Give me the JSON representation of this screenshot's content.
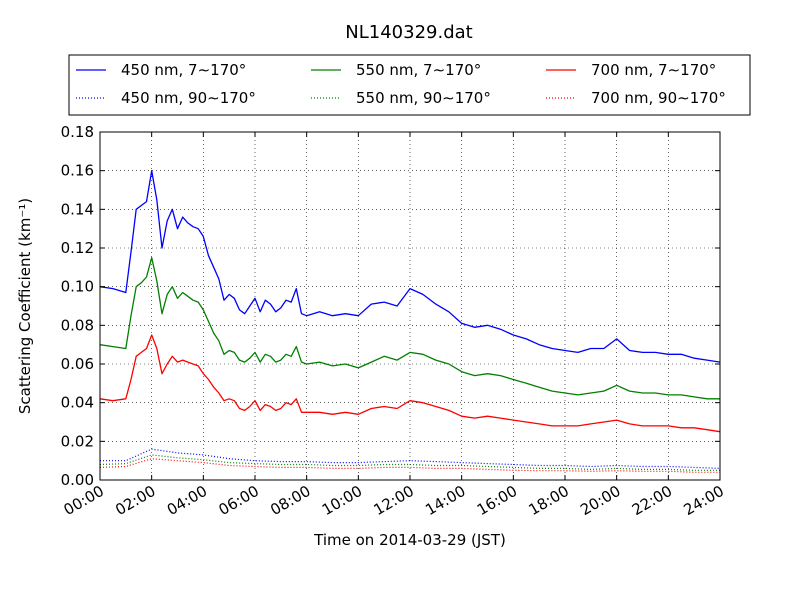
{
  "chart_data": {
    "type": "line",
    "title": "NL140329.dat",
    "xlabel": "Time on 2014-03-29 (JST)",
    "ylabel": "Scattering Coefficient (km⁻¹)",
    "x_unit": "hour",
    "xlim": [
      0,
      24
    ],
    "ylim": [
      0,
      0.18
    ],
    "grid": true,
    "legend_position": "top",
    "x_ticks": [
      {
        "value": 0,
        "label": "00:00"
      },
      {
        "value": 2,
        "label": "02:00"
      },
      {
        "value": 4,
        "label": "04:00"
      },
      {
        "value": 6,
        "label": "06:00"
      },
      {
        "value": 8,
        "label": "08:00"
      },
      {
        "value": 10,
        "label": "10:00"
      },
      {
        "value": 12,
        "label": "12:00"
      },
      {
        "value": 14,
        "label": "14:00"
      },
      {
        "value": 16,
        "label": "16:00"
      },
      {
        "value": 18,
        "label": "18:00"
      },
      {
        "value": 20,
        "label": "20:00"
      },
      {
        "value": 22,
        "label": "22:00"
      },
      {
        "value": 24,
        "label": "24:00"
      }
    ],
    "y_ticks": [
      {
        "value": 0.0,
        "label": "0.00"
      },
      {
        "value": 0.02,
        "label": "0.02"
      },
      {
        "value": 0.04,
        "label": "0.04"
      },
      {
        "value": 0.06,
        "label": "0.06"
      },
      {
        "value": 0.08,
        "label": "0.08"
      },
      {
        "value": 0.1,
        "label": "0.10"
      },
      {
        "value": 0.12,
        "label": "0.12"
      },
      {
        "value": 0.14,
        "label": "0.14"
      },
      {
        "value": 0.16,
        "label": "0.16"
      },
      {
        "value": 0.18,
        "label": "0.18"
      }
    ],
    "series": [
      {
        "name": "450 nm, 7∼170°",
        "color": "#0000ff",
        "style": "solid",
        "x": [
          0,
          0.5,
          1,
          1.2,
          1.4,
          1.6,
          1.8,
          2,
          2.2,
          2.4,
          2.6,
          2.8,
          3,
          3.2,
          3.4,
          3.6,
          3.8,
          4,
          4.2,
          4.4,
          4.6,
          4.8,
          5,
          5.2,
          5.4,
          5.6,
          5.8,
          6,
          6.2,
          6.4,
          6.6,
          6.8,
          7,
          7.2,
          7.4,
          7.6,
          7.8,
          8,
          8.5,
          9,
          9.5,
          10,
          10.5,
          11,
          11.5,
          12,
          12.5,
          13,
          13.5,
          14,
          14.5,
          15,
          15.5,
          16,
          16.5,
          17,
          17.5,
          18,
          18.5,
          19,
          19.5,
          20,
          20.5,
          21,
          21.5,
          22,
          22.5,
          23,
          23.5,
          24
        ],
        "y": [
          0.1,
          0.099,
          0.097,
          0.118,
          0.14,
          0.142,
          0.144,
          0.16,
          0.145,
          0.12,
          0.134,
          0.14,
          0.13,
          0.136,
          0.133,
          0.131,
          0.13,
          0.126,
          0.116,
          0.11,
          0.104,
          0.093,
          0.096,
          0.094,
          0.088,
          0.086,
          0.09,
          0.094,
          0.087,
          0.093,
          0.091,
          0.087,
          0.089,
          0.093,
          0.092,
          0.099,
          0.086,
          0.085,
          0.087,
          0.085,
          0.086,
          0.085,
          0.091,
          0.092,
          0.09,
          0.099,
          0.096,
          0.091,
          0.087,
          0.081,
          0.079,
          0.08,
          0.078,
          0.075,
          0.073,
          0.07,
          0.068,
          0.067,
          0.066,
          0.068,
          0.068,
          0.073,
          0.067,
          0.066,
          0.066,
          0.065,
          0.065,
          0.063,
          0.062,
          0.061
        ]
      },
      {
        "name": "450 nm, 90∼170°",
        "color": "#0000ff",
        "style": "dotted",
        "x": [
          0,
          1,
          2,
          3,
          4,
          5,
          6,
          7,
          8,
          9,
          10,
          11,
          12,
          13,
          14,
          15,
          16,
          17,
          18,
          19,
          20,
          21,
          22,
          23,
          24
        ],
        "y": [
          0.01,
          0.01,
          0.016,
          0.014,
          0.013,
          0.011,
          0.01,
          0.0095,
          0.0095,
          0.009,
          0.009,
          0.0095,
          0.01,
          0.0095,
          0.009,
          0.0085,
          0.008,
          0.0075,
          0.0075,
          0.007,
          0.0075,
          0.007,
          0.007,
          0.0065,
          0.006
        ]
      },
      {
        "name": "550 nm, 7∼170°",
        "color": "#008000",
        "style": "solid",
        "x": [
          0,
          0.5,
          1,
          1.2,
          1.4,
          1.6,
          1.8,
          2,
          2.2,
          2.4,
          2.6,
          2.8,
          3,
          3.2,
          3.4,
          3.6,
          3.8,
          4,
          4.2,
          4.4,
          4.6,
          4.8,
          5,
          5.2,
          5.4,
          5.6,
          5.8,
          6,
          6.2,
          6.4,
          6.6,
          6.8,
          7,
          7.2,
          7.4,
          7.6,
          7.8,
          8,
          8.5,
          9,
          9.5,
          10,
          10.5,
          11,
          11.5,
          12,
          12.5,
          13,
          13.5,
          14,
          14.5,
          15,
          15.5,
          16,
          16.5,
          17,
          17.5,
          18,
          18.5,
          19,
          19.5,
          20,
          20.5,
          21,
          21.5,
          22,
          22.5,
          23,
          23.5,
          24
        ],
        "y": [
          0.07,
          0.069,
          0.068,
          0.085,
          0.1,
          0.102,
          0.105,
          0.115,
          0.103,
          0.086,
          0.096,
          0.1,
          0.094,
          0.097,
          0.095,
          0.093,
          0.092,
          0.088,
          0.082,
          0.076,
          0.072,
          0.065,
          0.067,
          0.066,
          0.062,
          0.061,
          0.063,
          0.066,
          0.061,
          0.065,
          0.064,
          0.061,
          0.062,
          0.065,
          0.064,
          0.069,
          0.061,
          0.06,
          0.061,
          0.059,
          0.06,
          0.058,
          0.061,
          0.064,
          0.062,
          0.066,
          0.065,
          0.062,
          0.06,
          0.056,
          0.054,
          0.055,
          0.054,
          0.052,
          0.05,
          0.048,
          0.046,
          0.045,
          0.044,
          0.045,
          0.046,
          0.049,
          0.046,
          0.045,
          0.045,
          0.044,
          0.044,
          0.043,
          0.042,
          0.042
        ]
      },
      {
        "name": "550 nm, 90∼170°",
        "color": "#008000",
        "style": "dotted",
        "x": [
          0,
          1,
          2,
          3,
          4,
          5,
          6,
          7,
          8,
          9,
          10,
          11,
          12,
          13,
          14,
          15,
          16,
          17,
          18,
          19,
          20,
          21,
          22,
          23,
          24
        ],
        "y": [
          0.008,
          0.0085,
          0.013,
          0.0115,
          0.0105,
          0.009,
          0.0085,
          0.008,
          0.008,
          0.0075,
          0.0075,
          0.008,
          0.008,
          0.0075,
          0.0075,
          0.007,
          0.0065,
          0.006,
          0.006,
          0.0055,
          0.006,
          0.0055,
          0.0055,
          0.005,
          0.005
        ]
      },
      {
        "name": "700 nm, 7∼170°",
        "color": "#ff0000",
        "style": "solid",
        "x": [
          0,
          0.5,
          1,
          1.2,
          1.4,
          1.6,
          1.8,
          2,
          2.2,
          2.4,
          2.6,
          2.8,
          3,
          3.2,
          3.4,
          3.6,
          3.8,
          4,
          4.2,
          4.4,
          4.6,
          4.8,
          5,
          5.2,
          5.4,
          5.6,
          5.8,
          6,
          6.2,
          6.4,
          6.6,
          6.8,
          7,
          7.2,
          7.4,
          7.6,
          7.8,
          8,
          8.5,
          9,
          9.5,
          10,
          10.5,
          11,
          11.5,
          12,
          12.5,
          13,
          13.5,
          14,
          14.5,
          15,
          15.5,
          16,
          16.5,
          17,
          17.5,
          18,
          18.5,
          19,
          19.5,
          20,
          20.5,
          21,
          21.5,
          22,
          22.5,
          23,
          23.5,
          24
        ],
        "y": [
          0.042,
          0.041,
          0.042,
          0.052,
          0.064,
          0.066,
          0.068,
          0.075,
          0.068,
          0.055,
          0.06,
          0.064,
          0.061,
          0.062,
          0.061,
          0.06,
          0.059,
          0.055,
          0.052,
          0.048,
          0.045,
          0.041,
          0.042,
          0.041,
          0.037,
          0.036,
          0.038,
          0.041,
          0.036,
          0.039,
          0.038,
          0.036,
          0.037,
          0.04,
          0.039,
          0.042,
          0.035,
          0.035,
          0.035,
          0.034,
          0.035,
          0.034,
          0.037,
          0.038,
          0.037,
          0.041,
          0.04,
          0.038,
          0.036,
          0.033,
          0.032,
          0.033,
          0.032,
          0.031,
          0.03,
          0.029,
          0.028,
          0.028,
          0.028,
          0.029,
          0.03,
          0.031,
          0.029,
          0.028,
          0.028,
          0.028,
          0.027,
          0.027,
          0.026,
          0.025
        ]
      },
      {
        "name": "700 nm, 90∼170°",
        "color": "#ff0000",
        "style": "dotted",
        "x": [
          0,
          1,
          2,
          3,
          4,
          5,
          6,
          7,
          8,
          9,
          10,
          11,
          12,
          13,
          14,
          15,
          16,
          17,
          18,
          19,
          20,
          21,
          22,
          23,
          24
        ],
        "y": [
          0.0065,
          0.007,
          0.011,
          0.01,
          0.009,
          0.0075,
          0.007,
          0.0065,
          0.0065,
          0.006,
          0.006,
          0.0065,
          0.0065,
          0.006,
          0.006,
          0.0055,
          0.005,
          0.0048,
          0.0048,
          0.0045,
          0.0048,
          0.0045,
          0.0045,
          0.004,
          0.004
        ]
      }
    ]
  }
}
